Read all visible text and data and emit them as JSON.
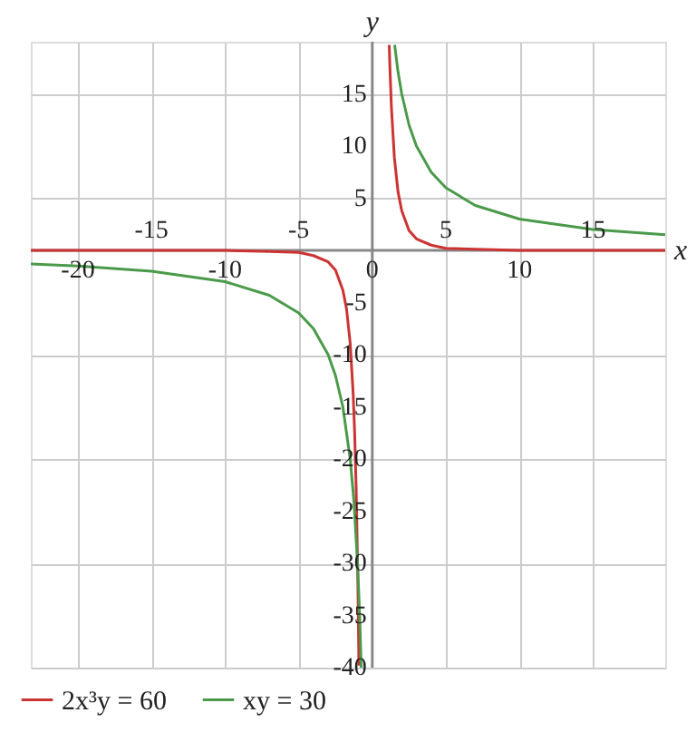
{
  "chart_data": {
    "type": "line",
    "xlabel": "x",
    "ylabel": "y",
    "xlim": [
      -23.2,
      19.9
    ],
    "ylim": [
      -40,
      20
    ],
    "xticks": [
      -20,
      {
        "value": -15,
        "label": null
      },
      -10,
      {
        "value": -5,
        "label": null
      },
      0,
      {
        "value": 5,
        "label": null
      },
      10,
      {
        "value": 15,
        "label": null
      }
    ],
    "x2lim": [
      -23.2,
      19.9
    ],
    "x2ticks": [
      -15,
      -5,
      5,
      15
    ],
    "yticks": [
      -40,
      -35,
      -30,
      -25,
      -20,
      -15,
      -10,
      -5,
      5,
      10,
      15
    ],
    "grid": true,
    "legend": "bottom left",
    "marker": "none",
    "line_style": "solid",
    "series": [
      {
        "name": "2x³y = 60",
        "color": "#cc3333",
        "x": [
          -23.2,
          -20,
          -15,
          -10,
          -7,
          -5,
          -4,
          -3,
          -2.5,
          -2,
          -1.75,
          -1.5,
          -1.3,
          -1.2,
          -1.1,
          -1,
          -0.95,
          -0.91,
          0,
          1.15,
          1.2,
          1.3,
          1.5,
          1.75,
          2,
          2.5,
          3,
          4,
          5,
          7,
          10,
          15,
          19.9
        ],
        "values": [
          0,
          0,
          0,
          0,
          -0.1,
          -0.2,
          -0.5,
          -1.1,
          -1.9,
          -3.8,
          -5.6,
          -8.9,
          -13.7,
          -17.4,
          -22.5,
          -30,
          -35,
          -39.8,
          null,
          19.7,
          17.4,
          13.7,
          8.9,
          5.6,
          3.8,
          1.9,
          1.1,
          0.5,
          0.2,
          0.1,
          0,
          0,
          0
        ]
      },
      {
        "name": "xy = 30",
        "color": "#4a9a4a",
        "x": [
          -23.2,
          -20,
          -15,
          -10,
          -7,
          -5,
          -4,
          -3,
          -2.5,
          -2,
          -1.5,
          -1.25,
          -1,
          -0.85,
          -0.75,
          0,
          1.52,
          1.75,
          2,
          2.5,
          3,
          4,
          5,
          7,
          10,
          15,
          19.9
        ],
        "values": [
          -1.3,
          -1.5,
          -2,
          -3,
          -4.3,
          -6,
          -7.5,
          -10,
          -12,
          -15,
          -20,
          -24,
          -30,
          -35.3,
          -40,
          null,
          19.7,
          17.1,
          15,
          12,
          10,
          7.5,
          6,
          4.3,
          3,
          2,
          1.5
        ]
      }
    ]
  }
}
